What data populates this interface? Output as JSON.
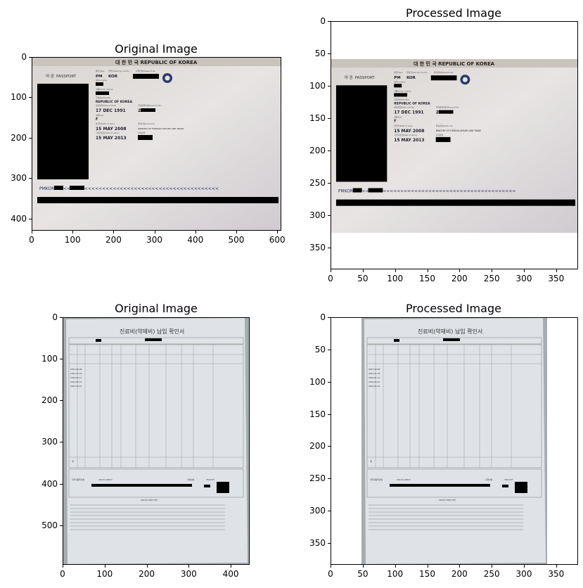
{
  "chart_data": [
    {
      "type": "image",
      "title": "Original Image",
      "image_content": "passport",
      "xlim": [
        0,
        610
      ],
      "ylim": [
        0,
        430
      ],
      "x_ticks": [
        0,
        100,
        200,
        300,
        400,
        500,
        600
      ],
      "y_ticks": [
        0,
        100,
        200,
        300,
        400
      ],
      "image_text": {
        "header": "대 한 민 국   REPUBLIC OF KOREA",
        "doc_type_kr": "여 권",
        "doc_type_en": "PASSPORT",
        "type_label": "종류/Type",
        "type_value": "PM",
        "country_label": "발행국/Issuing country",
        "country_value": "KOR",
        "passport_no_label": "여권번호/Passport No.",
        "surname_label": "성/Surname",
        "given_label": "이름/Given names",
        "nationality_label": "국적/Nationality",
        "nationality_value": "REPUBLIC OF KOREA",
        "dob_label": "생년월일/Date of birth",
        "dob_value": "17 DEC 1991",
        "personal_no_label": "주민등록번호/Personal No.",
        "personal_no_value": "2",
        "sex_label": "성별/Sex",
        "sex_value": "F",
        "issue_label": "발급일/Date of issue",
        "issue_value": "15 MAY 2008",
        "authority_label": "발행관청/Authority",
        "authority_value": "MINISTRY OF FOREIGN AFFAIRS AND TRADE",
        "expiry_label": "기간만료일/Date of expiry",
        "expiry_value": "15 MAY 2013",
        "signature_label": "한글성명",
        "mrz_start": "PMKOR",
        "mrz_mid": "<<",
        "mrz_fill": "<<<<<<<<<<<<<<<<<<<<<<<<<<<<<<<<<<<<<<"
      }
    },
    {
      "type": "image",
      "title": "Processed Image",
      "image_content": "passport",
      "xlim": [
        0,
        384
      ],
      "ylim": [
        0,
        384
      ],
      "image_extent_y": [
        57,
        325
      ],
      "x_ticks": [
        0,
        50,
        100,
        150,
        200,
        250,
        300,
        350
      ],
      "y_ticks": [
        0,
        50,
        100,
        150,
        200,
        250,
        300,
        350
      ]
    },
    {
      "type": "image",
      "title": "Original Image",
      "image_content": "receipt",
      "xlim": [
        0,
        445
      ],
      "ylim": [
        0,
        595
      ],
      "x_ticks": [
        0,
        100,
        200,
        300,
        400
      ],
      "y_ticks": [
        0,
        100,
        200,
        300,
        400,
        500
      ],
      "image_text": {
        "doc_title": "진료비(약제비) 납입 확인서",
        "dates": [
          "2021-09-09",
          "2021-11-18",
          "2022-01-11",
          "2022-05-21",
          "2022-06-22"
        ],
        "registration_no": "224-91-00017",
        "reg_label": "사업자등록번호",
        "phone_label": "전화번호",
        "phone": "7547227",
        "date_line": "2022년 05월 23일",
        "total_label": "계"
      }
    },
    {
      "type": "image",
      "title": "Processed Image",
      "image_content": "receipt",
      "xlim": [
        0,
        384
      ],
      "ylim": [
        0,
        384
      ],
      "image_extent_x": [
        47,
        336
      ],
      "x_ticks": [
        0,
        50,
        100,
        150,
        200,
        250,
        300,
        350
      ],
      "y_ticks": [
        0,
        50,
        100,
        150,
        200,
        250,
        300,
        350
      ]
    }
  ]
}
